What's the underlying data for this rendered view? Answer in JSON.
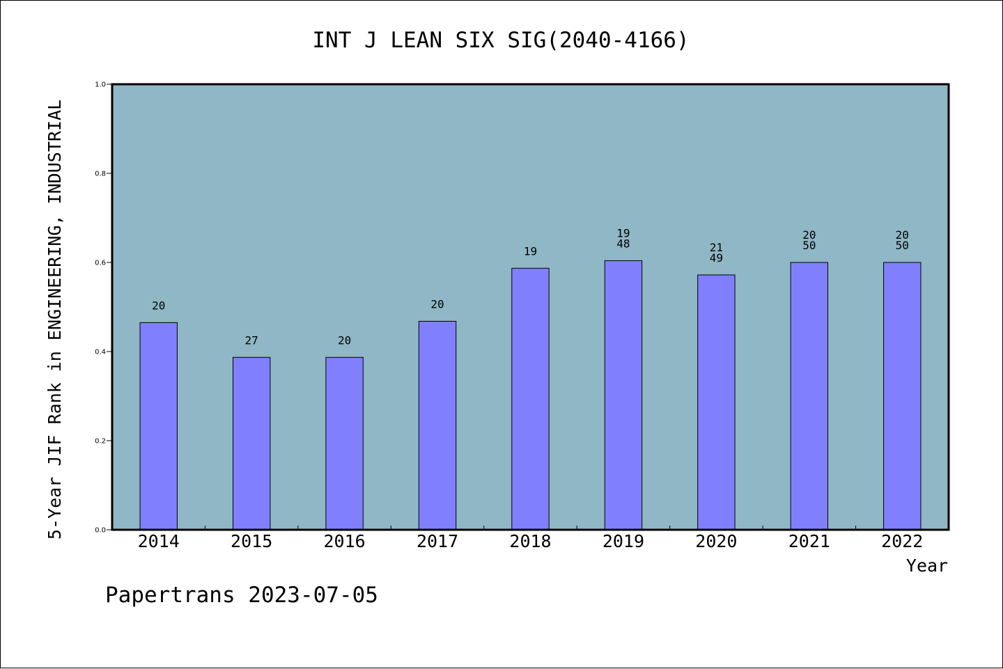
{
  "chart_data": {
    "type": "bar",
    "title": "INT J LEAN SIX SIG(2040-4166)",
    "xlabel": "Year",
    "ylabel": "5-Year JIF Rank in ENGINEERING, INDUSTRIAL",
    "ylim": [
      0,
      1.0
    ],
    "yticks": [
      "0.0",
      "0.2",
      "0.4",
      "0.6",
      "0.8",
      "1.0"
    ],
    "grid": false,
    "categories": [
      "2014",
      "2015",
      "2016",
      "2017",
      "2018",
      "2019",
      "2020",
      "2021",
      "2022"
    ],
    "values": [
      0.465,
      0.387,
      0.387,
      0.468,
      0.587,
      0.604,
      0.572,
      0.6,
      0.6
    ],
    "labels": [
      [
        "20"
      ],
      [
        "27"
      ],
      [
        "20"
      ],
      [
        "20"
      ],
      [
        "19"
      ],
      [
        "19",
        "48"
      ],
      [
        "21",
        "49"
      ],
      [
        "20",
        "50"
      ],
      [
        "20",
        "50"
      ]
    ],
    "colors": {
      "plot_background": "#8fb7c5",
      "bar_fill": "#8080ff",
      "bar_stroke": "#000000"
    }
  },
  "footer": {
    "text": "Papertrans 2023-07-05"
  }
}
